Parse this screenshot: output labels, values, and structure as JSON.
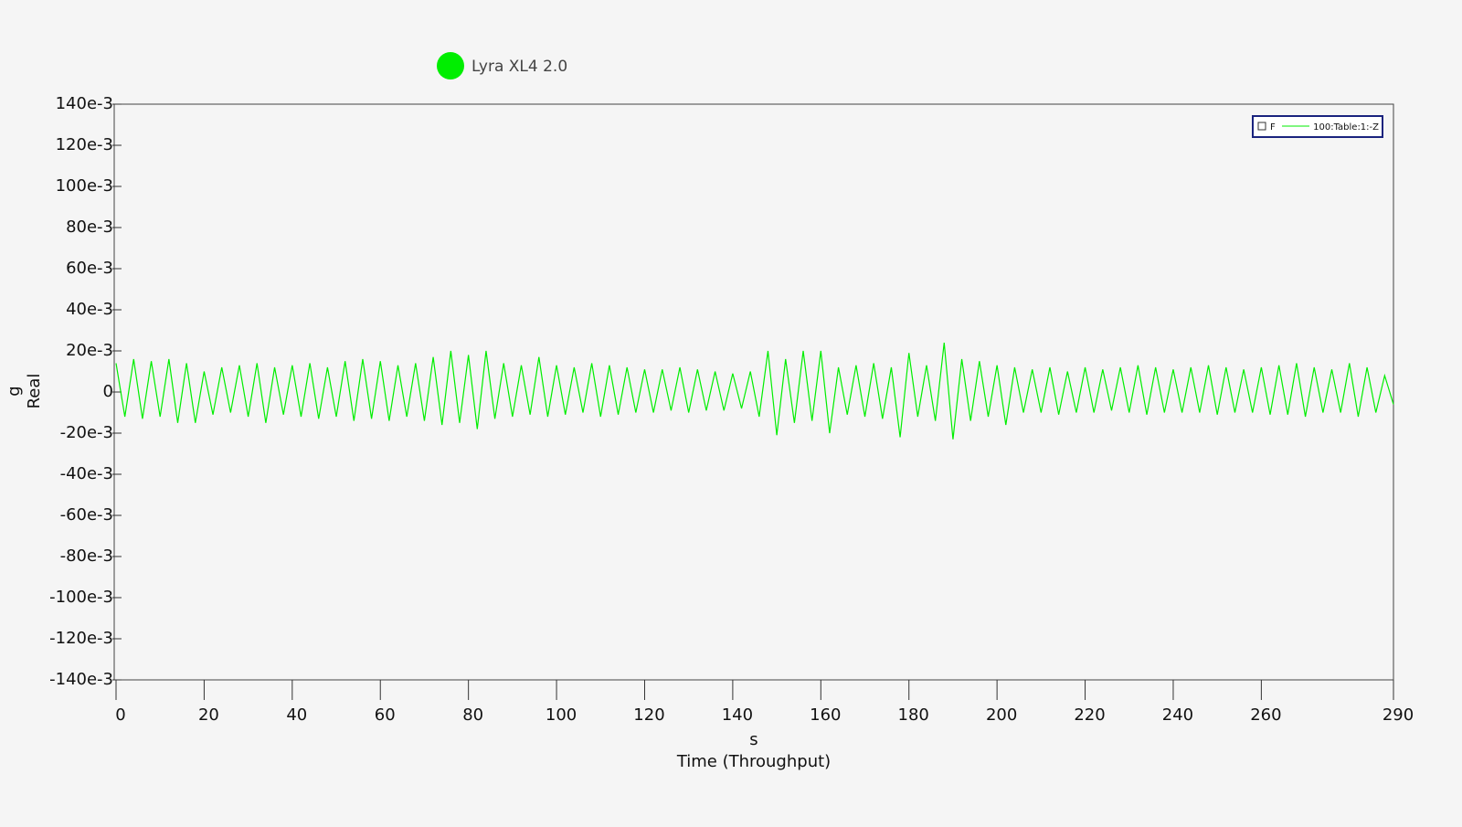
{
  "chart_data": {
    "type": "line",
    "legend_title": "Lyra XL4 2.0",
    "inner_legend": {
      "flag": "F",
      "label": "100:Table:1:-Z"
    },
    "ylabel": [
      "g",
      "Real"
    ],
    "xunit": "s",
    "xlabel": "Time (Throughput)",
    "xlim": [
      0,
      290
    ],
    "ylim": [
      -0.14,
      0.14
    ],
    "xticks": [
      0,
      20,
      40,
      60,
      80,
      100,
      120,
      140,
      160,
      180,
      200,
      220,
      240,
      260,
      290
    ],
    "yticks": [
      {
        "value": 0.14,
        "label": "140e-3"
      },
      {
        "value": 0.12,
        "label": "120e-3"
      },
      {
        "value": 0.1,
        "label": "100e-3"
      },
      {
        "value": 0.08,
        "label": "80e-3"
      },
      {
        "value": 0.06,
        "label": "60e-3"
      },
      {
        "value": 0.04,
        "label": "40e-3"
      },
      {
        "value": 0.02,
        "label": "20e-3"
      },
      0,
      {
        "value": -0.02,
        "label": "-20e-3"
      },
      {
        "value": -0.04,
        "label": "-40e-3"
      },
      {
        "value": -0.06,
        "label": "-60e-3"
      },
      {
        "value": -0.08,
        "label": "-80e-3"
      },
      {
        "value": -0.1,
        "label": "-100e-3"
      },
      {
        "value": -0.12,
        "label": "-120e-3"
      },
      {
        "value": -0.14,
        "label": "-140e-3"
      }
    ],
    "x": [
      0,
      2,
      4,
      6,
      8,
      10,
      12,
      14,
      16,
      18,
      20,
      22,
      24,
      26,
      28,
      30,
      32,
      34,
      36,
      38,
      40,
      42,
      44,
      46,
      48,
      50,
      52,
      54,
      56,
      58,
      60,
      62,
      64,
      66,
      68,
      70,
      72,
      74,
      76,
      78,
      80,
      82,
      84,
      86,
      88,
      90,
      92,
      94,
      96,
      98,
      100,
      102,
      104,
      106,
      108,
      110,
      112,
      114,
      116,
      118,
      120,
      122,
      124,
      126,
      128,
      130,
      132,
      134,
      136,
      138,
      140,
      142,
      144,
      146,
      148,
      150,
      152,
      154,
      156,
      158,
      160,
      162,
      164,
      166,
      168,
      170,
      172,
      174,
      176,
      178,
      180,
      182,
      184,
      186,
      188,
      190,
      192,
      194,
      196,
      198,
      200,
      202,
      204,
      206,
      208,
      210,
      212,
      214,
      216,
      218,
      220,
      222,
      224,
      226,
      228,
      230,
      232,
      234,
      236,
      238,
      240,
      242,
      244,
      246,
      248,
      250,
      252,
      254,
      256,
      258,
      260,
      262,
      264,
      266,
      268,
      270,
      272,
      274,
      276,
      278,
      280,
      282,
      284,
      286,
      288,
      290
    ],
    "series": [
      {
        "name": "Lyra XL4 2.0",
        "color": "#00ee00",
        "values": [
          0.014,
          -0.012,
          0.016,
          -0.013,
          0.015,
          -0.012,
          0.016,
          -0.015,
          0.014,
          -0.015,
          0.01,
          -0.011,
          0.012,
          -0.01,
          0.013,
          -0.012,
          0.014,
          -0.015,
          0.012,
          -0.011,
          0.013,
          -0.012,
          0.014,
          -0.013,
          0.012,
          -0.012,
          0.015,
          -0.014,
          0.016,
          -0.013,
          0.015,
          -0.014,
          0.013,
          -0.012,
          0.014,
          -0.014,
          0.017,
          -0.016,
          0.02,
          -0.015,
          0.018,
          -0.018,
          0.02,
          -0.013,
          0.014,
          -0.012,
          0.013,
          -0.011,
          0.017,
          -0.012,
          0.013,
          -0.011,
          0.012,
          -0.01,
          0.014,
          -0.012,
          0.013,
          -0.011,
          0.012,
          -0.01,
          0.011,
          -0.01,
          0.011,
          -0.009,
          0.012,
          -0.01,
          0.011,
          -0.009,
          0.01,
          -0.009,
          0.009,
          -0.008,
          0.01,
          -0.012,
          0.02,
          -0.021,
          0.016,
          -0.015,
          0.02,
          -0.014,
          0.02,
          -0.02,
          0.012,
          -0.011,
          0.013,
          -0.012,
          0.014,
          -0.013,
          0.012,
          -0.022,
          0.019,
          -0.012,
          0.013,
          -0.014,
          0.024,
          -0.023,
          0.016,
          -0.014,
          0.015,
          -0.012,
          0.013,
          -0.016,
          0.012,
          -0.01,
          0.011,
          -0.01,
          0.012,
          -0.011,
          0.01,
          -0.01,
          0.012,
          -0.01,
          0.011,
          -0.009,
          0.012,
          -0.01,
          0.013,
          -0.011,
          0.012,
          -0.01,
          0.011,
          -0.01,
          0.012,
          -0.01,
          0.013,
          -0.011,
          0.012,
          -0.01,
          0.011,
          -0.01,
          0.012,
          -0.011,
          0.013,
          -0.011,
          0.014,
          -0.012,
          0.012,
          -0.01,
          0.011,
          -0.01,
          0.014,
          -0.012,
          0.012,
          -0.01,
          0.008,
          -0.006
        ]
      }
    ]
  }
}
